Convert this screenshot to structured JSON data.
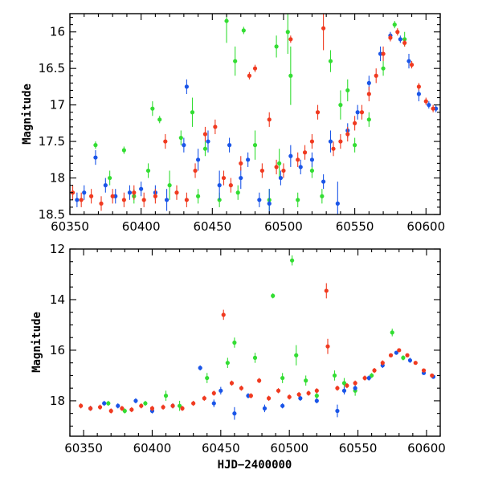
{
  "colors": {
    "green": "#33dd33",
    "blue": "#1a55e8",
    "red": "#f03a20",
    "axis": "#000000"
  },
  "chart_data": [
    {
      "type": "scatter",
      "title": "",
      "xlabel": "",
      "ylabel": "Magnitude",
      "xlim": [
        60350,
        60610
      ],
      "ylim": [
        18.5,
        15.75
      ],
      "y_inverted": true,
      "xticks": [
        60350,
        60400,
        60450,
        60500,
        60550,
        60600
      ],
      "xtick_labels": [
        "60350",
        "60400",
        "60450",
        "60500",
        "60550",
        "60600"
      ],
      "yticks": [
        16,
        16.5,
        17,
        17.5,
        18,
        18.5
      ],
      "ytick_labels": [
        "16",
        "16.5",
        "17",
        "17.5",
        "18",
        "18.5"
      ],
      "series": [
        {
          "color": "green",
          "points": [
            [
              60368,
              17.55,
              0.05
            ],
            [
              60378,
              18.0,
              0.1
            ],
            [
              60388,
              17.62,
              0.05
            ],
            [
              60395,
              18.25,
              0.1
            ],
            [
              60405,
              17.9,
              0.1
            ],
            [
              60408,
              17.05,
              0.1
            ],
            [
              60413,
              17.2,
              0.05
            ],
            [
              60420,
              18.1,
              0.2
            ],
            [
              60428,
              17.45,
              0.1
            ],
            [
              60436,
              17.1,
              0.2
            ],
            [
              60440,
              18.25,
              0.1
            ],
            [
              60445,
              17.6,
              0.1
            ],
            [
              60455,
              18.3,
              0.1
            ],
            [
              60460,
              15.85,
              0.3
            ],
            [
              60466,
              16.4,
              0.2
            ],
            [
              60468,
              18.2,
              0.1
            ],
            [
              60472,
              15.98,
              0.05
            ],
            [
              60480,
              17.55,
              0.2
            ],
            [
              60490,
              18.3,
              0.15
            ],
            [
              60495,
              16.2,
              0.15
            ],
            [
              60497,
              17.8,
              0.2
            ],
            [
              60503,
              16.0,
              0.3
            ],
            [
              60505,
              16.6,
              0.4
            ],
            [
              60510,
              18.3,
              0.1
            ],
            [
              60520,
              17.9,
              0.1
            ],
            [
              60527,
              18.25,
              0.1
            ],
            [
              60533,
              16.4,
              0.15
            ],
            [
              60540,
              17.0,
              0.2
            ],
            [
              60545,
              16.8,
              0.15
            ],
            [
              60550,
              17.55,
              0.1
            ],
            [
              60560,
              17.2,
              0.1
            ],
            [
              60570,
              16.5,
              0.1
            ],
            [
              60578,
              15.9,
              0.05
            ],
            [
              60585,
              16.1,
              0.1
            ]
          ]
        },
        {
          "color": "blue",
          "points": [
            [
              60355,
              18.3,
              0.1
            ],
            [
              60360,
              18.2,
              0.1
            ],
            [
              60368,
              17.72,
              0.1
            ],
            [
              60375,
              18.1,
              0.1
            ],
            [
              60382,
              18.25,
              0.1
            ],
            [
              60392,
              18.2,
              0.1
            ],
            [
              60400,
              18.15,
              0.1
            ],
            [
              60410,
              18.2,
              0.1
            ],
            [
              60418,
              18.3,
              0.15
            ],
            [
              60430,
              17.55,
              0.1
            ],
            [
              60432,
              16.75,
              0.1
            ],
            [
              60440,
              17.75,
              0.15
            ],
            [
              60447,
              17.5,
              0.15
            ],
            [
              60455,
              18.1,
              0.2
            ],
            [
              60462,
              17.55,
              0.1
            ],
            [
              60470,
              18.0,
              0.15
            ],
            [
              60475,
              17.75,
              0.1
            ],
            [
              60483,
              18.3,
              0.1
            ],
            [
              60490,
              18.35,
              0.2
            ],
            [
              60498,
              18.0,
              0.1
            ],
            [
              60505,
              17.7,
              0.15
            ],
            [
              60512,
              17.85,
              0.1
            ],
            [
              60520,
              17.75,
              0.1
            ],
            [
              60528,
              18.05,
              0.1
            ],
            [
              60533,
              17.5,
              0.15
            ],
            [
              60538,
              18.35,
              0.3
            ],
            [
              60545,
              17.35,
              0.1
            ],
            [
              60552,
              17.1,
              0.1
            ],
            [
              60560,
              16.7,
              0.1
            ],
            [
              60568,
              16.3,
              0.1
            ],
            [
              60575,
              16.05,
              0.05
            ],
            [
              60582,
              16.1,
              0.05
            ],
            [
              60588,
              16.4,
              0.1
            ],
            [
              60595,
              16.85,
              0.1
            ],
            [
              60602,
              17.0,
              0.05
            ],
            [
              60607,
              17.05,
              0.05
            ]
          ]
        },
        {
          "color": "red",
          "points": [
            [
              60352,
              18.2,
              0.1
            ],
            [
              60358,
              18.3,
              0.1
            ],
            [
              60365,
              18.25,
              0.1
            ],
            [
              60372,
              18.35,
              0.1
            ],
            [
              60380,
              18.25,
              0.1
            ],
            [
              60388,
              18.3,
              0.1
            ],
            [
              60395,
              18.2,
              0.1
            ],
            [
              60402,
              18.3,
              0.1
            ],
            [
              60410,
              18.25,
              0.1
            ],
            [
              60417,
              17.5,
              0.1
            ],
            [
              60425,
              18.2,
              0.1
            ],
            [
              60432,
              18.3,
              0.1
            ],
            [
              60438,
              17.9,
              0.1
            ],
            [
              60445,
              17.4,
              0.1
            ],
            [
              60452,
              17.3,
              0.1
            ],
            [
              60458,
              18.0,
              0.1
            ],
            [
              60463,
              18.1,
              0.1
            ],
            [
              60470,
              17.8,
              0.1
            ],
            [
              60476,
              16.6,
              0.05
            ],
            [
              60480,
              16.5,
              0.05
            ],
            [
              60485,
              17.9,
              0.1
            ],
            [
              60490,
              17.2,
              0.1
            ],
            [
              60495,
              17.85,
              0.1
            ],
            [
              60500,
              17.9,
              0.1
            ],
            [
              60505,
              16.1,
              0.05
            ],
            [
              60510,
              17.75,
              0.1
            ],
            [
              60515,
              17.65,
              0.1
            ],
            [
              60520,
              17.5,
              0.1
            ],
            [
              60524,
              17.1,
              0.1
            ],
            [
              60528,
              15.95,
              0.3
            ],
            [
              60535,
              17.6,
              0.1
            ],
            [
              60540,
              17.5,
              0.1
            ],
            [
              60545,
              17.4,
              0.1
            ],
            [
              60550,
              17.25,
              0.1
            ],
            [
              60555,
              17.1,
              0.1
            ],
            [
              60560,
              16.85,
              0.1
            ],
            [
              60565,
              16.6,
              0.1
            ],
            [
              60570,
              16.3,
              0.1
            ],
            [
              60575,
              16.08,
              0.05
            ],
            [
              60580,
              16.0,
              0.05
            ],
            [
              60585,
              16.15,
              0.05
            ],
            [
              60590,
              16.45,
              0.05
            ],
            [
              60595,
              16.75,
              0.05
            ],
            [
              60600,
              16.95,
              0.05
            ],
            [
              60605,
              17.05,
              0.05
            ]
          ]
        }
      ]
    },
    {
      "type": "scatter",
      "title": "",
      "xlabel": "HJD−2400000",
      "ylabel": "Magnitude",
      "xlim": [
        60340,
        60610
      ],
      "ylim": [
        19.4,
        12
      ],
      "y_inverted": true,
      "xticks": [
        60350,
        60400,
        60450,
        60500,
        60550,
        60600
      ],
      "xtick_labels": [
        "60350",
        "60400",
        "60450",
        "60500",
        "60550",
        "60600"
      ],
      "yticks": [
        12,
        14,
        16,
        18
      ],
      "ytick_labels": [
        "12",
        "14",
        "16",
        "18"
      ],
      "series": [
        {
          "color": "green",
          "points": [
            [
              60368,
              18.1,
              0.1
            ],
            [
              60380,
              18.4,
              0.1
            ],
            [
              60395,
              18.1,
              0.1
            ],
            [
              60410,
              17.8,
              0.2
            ],
            [
              60420,
              18.2,
              0.2
            ],
            [
              60440,
              17.1,
              0.2
            ],
            [
              60455,
              16.5,
              0.2
            ],
            [
              60460,
              15.7,
              0.2
            ],
            [
              60475,
              16.3,
              0.2
            ],
            [
              60488,
              13.85,
              0.1
            ],
            [
              60495,
              17.1,
              0.2
            ],
            [
              60502,
              12.45,
              0.2
            ],
            [
              60505,
              16.2,
              0.4
            ],
            [
              60512,
              17.2,
              0.2
            ],
            [
              60520,
              17.8,
              0.2
            ],
            [
              60533,
              17.0,
              0.2
            ],
            [
              60540,
              17.3,
              0.2
            ],
            [
              60548,
              17.6,
              0.2
            ],
            [
              60560,
              17.0,
              0.1
            ],
            [
              60575,
              15.3,
              0.15
            ],
            [
              60583,
              16.3,
              0.1
            ]
          ]
        },
        {
          "color": "blue",
          "points": [
            [
              60355,
              18.3,
              0.1
            ],
            [
              60365,
              18.1,
              0.1
            ],
            [
              60375,
              18.2,
              0.1
            ],
            [
              60388,
              18.0,
              0.1
            ],
            [
              60400,
              18.4,
              0.1
            ],
            [
              60415,
              18.2,
              0.1
            ],
            [
              60435,
              16.7,
              0.1
            ],
            [
              60445,
              18.1,
              0.15
            ],
            [
              60450,
              17.6,
              0.15
            ],
            [
              60460,
              18.5,
              0.25
            ],
            [
              60470,
              17.8,
              0.1
            ],
            [
              60482,
              18.3,
              0.15
            ],
            [
              60495,
              18.2,
              0.1
            ],
            [
              60508,
              17.9,
              0.1
            ],
            [
              60520,
              18.0,
              0.1
            ],
            [
              60535,
              18.4,
              0.25
            ],
            [
              60540,
              17.6,
              0.15
            ],
            [
              60548,
              17.5,
              0.1
            ],
            [
              60558,
              17.1,
              0.1
            ],
            [
              60568,
              16.6,
              0.1
            ],
            [
              60578,
              16.1,
              0.05
            ],
            [
              60588,
              16.4,
              0.1
            ],
            [
              60598,
              16.9,
              0.05
            ],
            [
              60605,
              17.05,
              0.05
            ]
          ]
        },
        {
          "color": "red",
          "points": [
            [
              60348,
              18.2,
              0.1
            ],
            [
              60355,
              18.3,
              0.1
            ],
            [
              60362,
              18.25,
              0.1
            ],
            [
              60370,
              18.4,
              0.1
            ],
            [
              60378,
              18.3,
              0.1
            ],
            [
              60385,
              18.35,
              0.1
            ],
            [
              60392,
              18.2,
              0.1
            ],
            [
              60400,
              18.3,
              0.1
            ],
            [
              60408,
              18.25,
              0.1
            ],
            [
              60415,
              18.2,
              0.1
            ],
            [
              60422,
              18.3,
              0.1
            ],
            [
              60430,
              18.1,
              0.1
            ],
            [
              60438,
              17.9,
              0.1
            ],
            [
              60445,
              17.7,
              0.1
            ],
            [
              60452,
              14.6,
              0.2
            ],
            [
              60458,
              17.3,
              0.1
            ],
            [
              60465,
              17.5,
              0.1
            ],
            [
              60472,
              17.8,
              0.1
            ],
            [
              60478,
              17.2,
              0.1
            ],
            [
              60485,
              17.9,
              0.1
            ],
            [
              60492,
              17.6,
              0.1
            ],
            [
              60500,
              17.85,
              0.1
            ],
            [
              60507,
              17.75,
              0.1
            ],
            [
              60514,
              17.7,
              0.1
            ],
            [
              60520,
              17.6,
              0.1
            ],
            [
              60527,
              13.65,
              0.3
            ],
            [
              60528,
              15.85,
              0.3
            ],
            [
              60535,
              17.5,
              0.1
            ],
            [
              60542,
              17.4,
              0.1
            ],
            [
              60548,
              17.3,
              0.1
            ],
            [
              60555,
              17.1,
              0.1
            ],
            [
              60562,
              16.8,
              0.1
            ],
            [
              60568,
              16.5,
              0.1
            ],
            [
              60574,
              16.2,
              0.05
            ],
            [
              60580,
              16.0,
              0.05
            ],
            [
              60586,
              16.2,
              0.05
            ],
            [
              60592,
              16.5,
              0.05
            ],
            [
              60598,
              16.8,
              0.05
            ],
            [
              60604,
              17.0,
              0.05
            ]
          ]
        }
      ]
    }
  ]
}
